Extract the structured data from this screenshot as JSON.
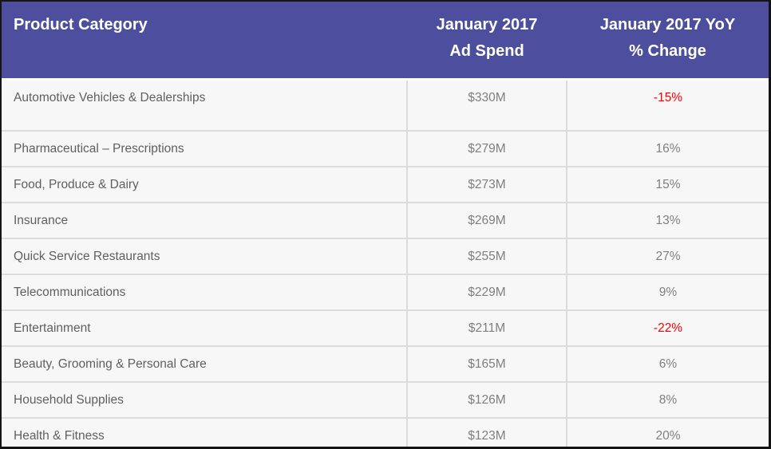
{
  "table": {
    "header": {
      "category_label": "Product Category",
      "spend_line1": "January 2017",
      "spend_line2": "Ad Spend",
      "yoy_line1": "January 2017 YoY",
      "yoy_line2": "% Change"
    },
    "rows": [
      {
        "category": "Automotive Vehicles & Dealerships",
        "ad_spend": "$330M",
        "yoy_change": "-15%"
      },
      {
        "category": "Pharmaceutical – Prescriptions",
        "ad_spend": "$279M",
        "yoy_change": "16%"
      },
      {
        "category": "Food, Produce & Dairy",
        "ad_spend": "$273M",
        "yoy_change": "15%"
      },
      {
        "category": "Insurance",
        "ad_spend": "$269M",
        "yoy_change": "13%"
      },
      {
        "category": "Quick Service Restaurants",
        "ad_spend": "$255M",
        "yoy_change": "27%"
      },
      {
        "category": "Telecommunications",
        "ad_spend": "$229M",
        "yoy_change": "9%"
      },
      {
        "category": "Entertainment",
        "ad_spend": "$211M",
        "yoy_change": "-22%"
      },
      {
        "category": "Beauty, Grooming & Personal Care",
        "ad_spend": "$165M",
        "yoy_change": "6%"
      },
      {
        "category": "Household Supplies",
        "ad_spend": "$126M",
        "yoy_change": "8%"
      },
      {
        "category": "Health & Fitness",
        "ad_spend": "$123M",
        "yoy_change": "20%"
      }
    ]
  },
  "colors": {
    "header_background": "#4e4e9e",
    "header_text": "#ffffff",
    "row_background": "#f7f7f7",
    "divider": "#dcdcdc",
    "category_text": "#5f5f5f",
    "value_text": "#7f7f7f",
    "negative_value_text": "#fe0000",
    "outer_border": "#141414"
  },
  "chart_data": {
    "type": "table",
    "title": "January 2017 Ad Spend by Product Category",
    "columns": [
      "Product Category",
      "January 2017 Ad Spend",
      "January 2017 YoY % Change"
    ],
    "categories": [
      "Automotive Vehicles & Dealerships",
      "Pharmaceutical – Prescriptions",
      "Food, Produce & Dairy",
      "Insurance",
      "Quick Service Restaurants",
      "Telecommunications",
      "Entertainment",
      "Beauty, Grooming & Personal Care",
      "Household Supplies",
      "Health & Fitness"
    ],
    "series": [
      {
        "name": "January 2017 Ad Spend ($M)",
        "values": [
          330,
          279,
          273,
          269,
          255,
          229,
          211,
          165,
          126,
          123
        ]
      },
      {
        "name": "January 2017 YoY % Change",
        "values": [
          -15,
          16,
          15,
          13,
          27,
          9,
          -22,
          6,
          8,
          20
        ]
      }
    ],
    "notes": "Negative YoY values shown in red"
  }
}
